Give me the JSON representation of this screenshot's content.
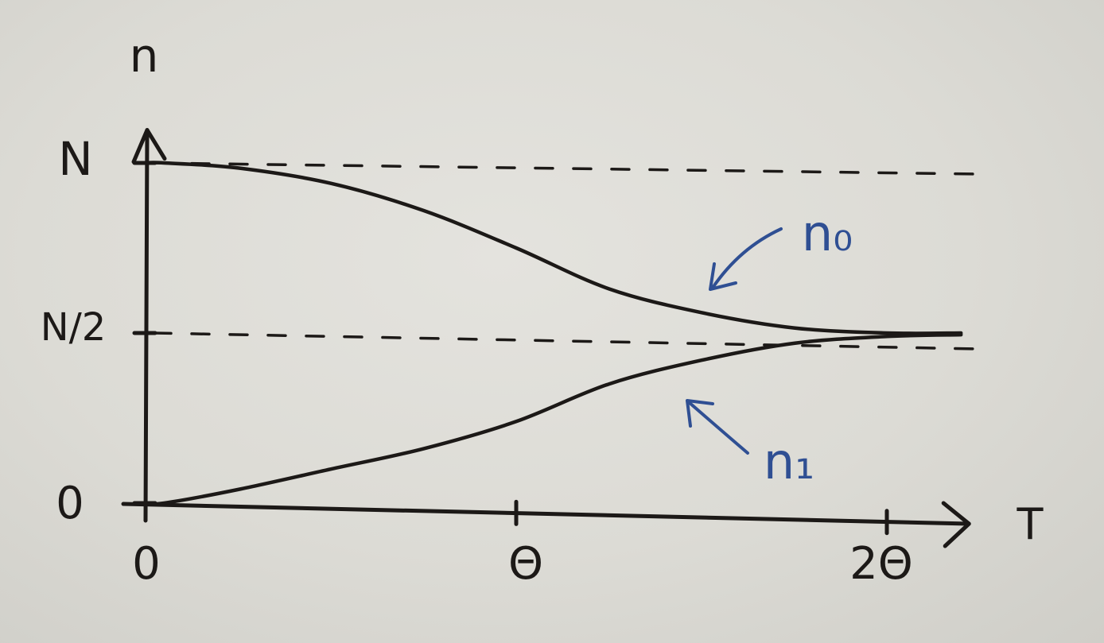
{
  "chart_data": {
    "type": "line",
    "title": "",
    "xlabel": "T",
    "ylabel": "n",
    "xlim": [
      0,
      2.27
    ],
    "ylim": [
      0,
      1.05
    ],
    "x_ticks": [
      {
        "value": 0,
        "label": "0"
      },
      {
        "value": 1,
        "label": "Θ"
      },
      {
        "value": 2,
        "label": "2Θ"
      }
    ],
    "y_ticks": [
      {
        "value": 0,
        "label": "0"
      },
      {
        "value": 0.5,
        "label": "N/2"
      },
      {
        "value": 1,
        "label": "N"
      }
    ],
    "grid": false,
    "reference_lines": [
      {
        "y": 1,
        "style": "dashed"
      },
      {
        "y": 0.5,
        "style": "dashed"
      }
    ],
    "series": [
      {
        "name": "n₀",
        "color": "#1c1917",
        "x": [
          0,
          0.05,
          0.25,
          0.5,
          0.75,
          1.0,
          1.25,
          1.5,
          1.75,
          2.0,
          2.2
        ],
        "y": [
          1.0,
          1.0,
          0.985,
          0.94,
          0.86,
          0.75,
          0.63,
          0.56,
          0.515,
          0.5,
          0.5
        ]
      },
      {
        "name": "n₁",
        "color": "#1c1917",
        "x": [
          0,
          0.05,
          0.25,
          0.5,
          0.75,
          1.0,
          1.25,
          1.5,
          1.75,
          2.0,
          2.2
        ],
        "y": [
          0.0,
          0.0,
          0.04,
          0.1,
          0.16,
          0.24,
          0.35,
          0.42,
          0.47,
          0.49,
          0.495
        ]
      }
    ],
    "annotations": [
      {
        "text": "n₀",
        "color": "#2f4f93",
        "points_to": "n₀"
      },
      {
        "text": "n₁",
        "color": "#2f4f93",
        "points_to": "n₁"
      }
    ]
  }
}
